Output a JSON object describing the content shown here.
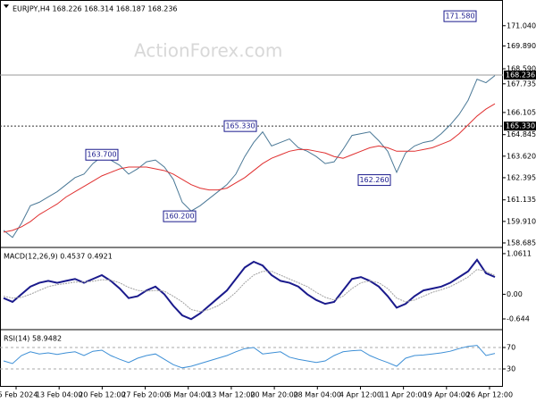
{
  "chart_data": [
    {
      "type": "line",
      "title": "EURJPY,H4 168.226 168.314 168.187 168.236",
      "watermark": "ActionForex.com",
      "series": [
        {
          "name": "EURJPY",
          "color": "#4a7896",
          "values": [
            159.4,
            159.0,
            159.8,
            160.8,
            161.0,
            161.3,
            161.6,
            162.0,
            162.4,
            162.6,
            163.2,
            163.6,
            163.4,
            163.1,
            162.6,
            162.9,
            163.3,
            163.4,
            163.0,
            162.3,
            161.0,
            160.5,
            160.8,
            161.2,
            161.6,
            162.0,
            162.6,
            163.6,
            164.4,
            165.0,
            164.2,
            164.4,
            164.6,
            164.1,
            163.9,
            163.6,
            163.2,
            163.3,
            164.0,
            164.8,
            164.9,
            165.0,
            164.5,
            163.9,
            162.7,
            163.8,
            164.2,
            164.4,
            164.5,
            164.9,
            165.4,
            166.0,
            166.8,
            168.0,
            167.8,
            168.2
          ]
        },
        {
          "name": "MA",
          "color": "#e03030",
          "values": [
            159.3,
            159.4,
            159.6,
            159.9,
            160.3,
            160.6,
            160.9,
            161.3,
            161.6,
            161.9,
            162.2,
            162.5,
            162.7,
            162.9,
            163.0,
            163.0,
            163.0,
            162.9,
            162.8,
            162.6,
            162.3,
            162.0,
            161.8,
            161.7,
            161.7,
            161.8,
            162.1,
            162.4,
            162.8,
            163.2,
            163.5,
            163.7,
            163.9,
            164.0,
            164.0,
            163.9,
            163.8,
            163.6,
            163.5,
            163.7,
            163.9,
            164.1,
            164.2,
            164.1,
            163.9,
            163.9,
            163.9,
            164.0,
            164.1,
            164.3,
            164.5,
            164.9,
            165.4,
            165.9,
            166.3,
            166.6
          ]
        }
      ],
      "ylim": [
        158.53,
        172.4
      ],
      "yticks": [
        {
          "value": 171.04,
          "label": "171.040"
        },
        {
          "value": 169.89,
          "label": "169.890"
        },
        {
          "value": 168.59,
          "label": "168.590"
        },
        {
          "value": 167.735,
          "label": "167.735"
        },
        {
          "value": 166.105,
          "label": "166.105"
        },
        {
          "value": 164.845,
          "label": "164.845"
        },
        {
          "value": 163.62,
          "label": "163.620"
        },
        {
          "value": 162.395,
          "label": "162.395"
        },
        {
          "value": 161.135,
          "label": "161.135"
        },
        {
          "value": 159.91,
          "label": "159.910"
        },
        {
          "value": 158.685,
          "label": "158.685"
        }
      ],
      "last_price": {
        "value": 168.236,
        "label": "168.236"
      },
      "level": {
        "value": 165.33,
        "label": "165.330"
      },
      "annotations": [
        {
          "value": 171.58,
          "label": "171.580"
        },
        {
          "value": 165.33,
          "label": "165.330"
        },
        {
          "value": 163.7,
          "label": "163.700"
        },
        {
          "value": 160.2,
          "label": "160.200"
        },
        {
          "value": 162.26,
          "label": "162.260"
        }
      ],
      "xlabels": [
        "5 Feb 2024",
        "13 Feb 04:00",
        "20 Feb 12:00",
        "27 Feb 20:00",
        "6 Mar 04:00",
        "13 Mar 12:00",
        "20 Mar 20:00",
        "28 Mar 04:00",
        "4 Apr 12:00",
        "11 Apr 20:00",
        "19 Apr 04:00",
        "26 Apr 12:00"
      ]
    },
    {
      "type": "line",
      "title": "MACD(12,26,9) 0.4537 0.4921",
      "series": [
        {
          "name": "MACD",
          "color": "#1a1a8c",
          "values": [
            -0.1,
            -0.2,
            0.0,
            0.2,
            0.3,
            0.35,
            0.3,
            0.35,
            0.4,
            0.3,
            0.4,
            0.5,
            0.35,
            0.15,
            -0.1,
            -0.05,
            0.1,
            0.2,
            0.0,
            -0.3,
            -0.55,
            -0.65,
            -0.5,
            -0.3,
            -0.1,
            0.1,
            0.4,
            0.7,
            0.85,
            0.75,
            0.5,
            0.35,
            0.3,
            0.2,
            0.0,
            -0.15,
            -0.25,
            -0.2,
            0.1,
            0.4,
            0.45,
            0.35,
            0.2,
            -0.05,
            -0.35,
            -0.25,
            -0.05,
            0.1,
            0.15,
            0.2,
            0.3,
            0.45,
            0.6,
            0.9,
            0.55,
            0.45
          ]
        },
        {
          "name": "Signal",
          "color": "#a0a0a0",
          "values": [
            -0.05,
            -0.1,
            -0.08,
            0.0,
            0.1,
            0.2,
            0.25,
            0.28,
            0.32,
            0.32,
            0.34,
            0.38,
            0.37,
            0.3,
            0.18,
            0.1,
            0.08,
            0.1,
            0.08,
            -0.05,
            -0.2,
            -0.4,
            -0.45,
            -0.4,
            -0.3,
            -0.15,
            0.05,
            0.3,
            0.5,
            0.6,
            0.6,
            0.5,
            0.4,
            0.3,
            0.2,
            0.05,
            -0.08,
            -0.15,
            -0.05,
            0.15,
            0.3,
            0.35,
            0.3,
            0.15,
            -0.1,
            -0.2,
            -0.15,
            -0.05,
            0.05,
            0.12,
            0.2,
            0.32,
            0.45,
            0.65,
            0.6,
            0.49
          ]
        }
      ],
      "ylim": [
        -0.877,
        1.176
      ],
      "yticks": [
        1.0611,
        {
          "value": 0,
          "label": "0.00"
        },
        -0.644
      ]
    },
    {
      "type": "line",
      "title": "RSI(14) 58.9482",
      "series": [
        {
          "name": "RSI",
          "color": "#3d8fd6",
          "values": [
            45,
            40,
            55,
            62,
            58,
            60,
            57,
            60,
            62,
            55,
            63,
            65,
            55,
            48,
            42,
            50,
            55,
            58,
            48,
            38,
            32,
            35,
            40,
            45,
            50,
            55,
            62,
            68,
            70,
            58,
            60,
            62,
            52,
            48,
            45,
            42,
            45,
            55,
            62,
            64,
            65,
            55,
            48,
            42,
            35,
            50,
            55,
            56,
            58,
            60,
            63,
            68,
            72,
            74,
            55,
            59
          ]
        }
      ],
      "ylim": [
        0,
        100
      ],
      "yticks": [
        70,
        30
      ]
    }
  ]
}
